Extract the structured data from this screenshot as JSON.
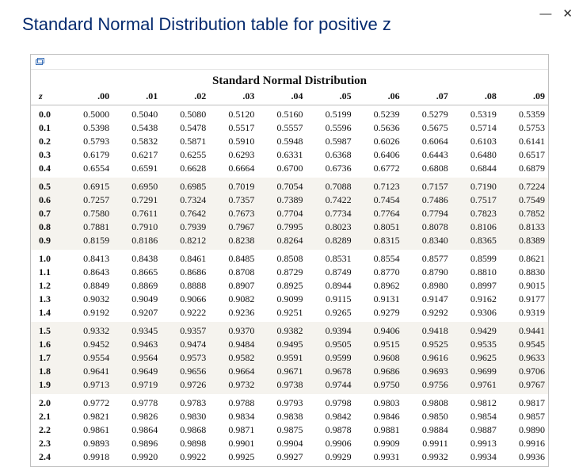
{
  "window": {
    "minimize_glyph": "—",
    "close_glyph": "✕"
  },
  "page": {
    "title": "Standard Normal Distribution table for positive z"
  },
  "table": {
    "type": "table",
    "title": "Standard Normal Distribution",
    "z_header": "z",
    "column_headers": [
      ".00",
      ".01",
      ".02",
      ".03",
      ".04",
      ".05",
      ".06",
      ".07",
      ".08",
      ".09"
    ],
    "header_fontweight": "bold",
    "font_family": "Georgia, 'Times New Roman', serif",
    "body_fontsize": 12,
    "title_fontsize": 15,
    "border_color": "#bfbfbf",
    "band_colors": [
      "#ffffff",
      "#f5f3ee"
    ],
    "blocks": [
      {
        "band": 0,
        "rows": [
          {
            "z": "0.0",
            "v": [
              "0.5000",
              "0.5040",
              "0.5080",
              "0.5120",
              "0.5160",
              "0.5199",
              "0.5239",
              "0.5279",
              "0.5319",
              "0.5359"
            ]
          },
          {
            "z": "0.1",
            "v": [
              "0.5398",
              "0.5438",
              "0.5478",
              "0.5517",
              "0.5557",
              "0.5596",
              "0.5636",
              "0.5675",
              "0.5714",
              "0.5753"
            ]
          },
          {
            "z": "0.2",
            "v": [
              "0.5793",
              "0.5832",
              "0.5871",
              "0.5910",
              "0.5948",
              "0.5987",
              "0.6026",
              "0.6064",
              "0.6103",
              "0.6141"
            ]
          },
          {
            "z": "0.3",
            "v": [
              "0.6179",
              "0.6217",
              "0.6255",
              "0.6293",
              "0.6331",
              "0.6368",
              "0.6406",
              "0.6443",
              "0.6480",
              "0.6517"
            ]
          },
          {
            "z": "0.4",
            "v": [
              "0.6554",
              "0.6591",
              "0.6628",
              "0.6664",
              "0.6700",
              "0.6736",
              "0.6772",
              "0.6808",
              "0.6844",
              "0.6879"
            ]
          }
        ]
      },
      {
        "band": 1,
        "rows": [
          {
            "z": "0.5",
            "v": [
              "0.6915",
              "0.6950",
              "0.6985",
              "0.7019",
              "0.7054",
              "0.7088",
              "0.7123",
              "0.7157",
              "0.7190",
              "0.7224"
            ]
          },
          {
            "z": "0.6",
            "v": [
              "0.7257",
              "0.7291",
              "0.7324",
              "0.7357",
              "0.7389",
              "0.7422",
              "0.7454",
              "0.7486",
              "0.7517",
              "0.7549"
            ]
          },
          {
            "z": "0.7",
            "v": [
              "0.7580",
              "0.7611",
              "0.7642",
              "0.7673",
              "0.7704",
              "0.7734",
              "0.7764",
              "0.7794",
              "0.7823",
              "0.7852"
            ]
          },
          {
            "z": "0.8",
            "v": [
              "0.7881",
              "0.7910",
              "0.7939",
              "0.7967",
              "0.7995",
              "0.8023",
              "0.8051",
              "0.8078",
              "0.8106",
              "0.8133"
            ]
          },
          {
            "z": "0.9",
            "v": [
              "0.8159",
              "0.8186",
              "0.8212",
              "0.8238",
              "0.8264",
              "0.8289",
              "0.8315",
              "0.8340",
              "0.8365",
              "0.8389"
            ]
          }
        ]
      },
      {
        "band": 0,
        "rows": [
          {
            "z": "1.0",
            "v": [
              "0.8413",
              "0.8438",
              "0.8461",
              "0.8485",
              "0.8508",
              "0.8531",
              "0.8554",
              "0.8577",
              "0.8599",
              "0.8621"
            ]
          },
          {
            "z": "1.1",
            "v": [
              "0.8643",
              "0.8665",
              "0.8686",
              "0.8708",
              "0.8729",
              "0.8749",
              "0.8770",
              "0.8790",
              "0.8810",
              "0.8830"
            ]
          },
          {
            "z": "1.2",
            "v": [
              "0.8849",
              "0.8869",
              "0.8888",
              "0.8907",
              "0.8925",
              "0.8944",
              "0.8962",
              "0.8980",
              "0.8997",
              "0.9015"
            ]
          },
          {
            "z": "1.3",
            "v": [
              "0.9032",
              "0.9049",
              "0.9066",
              "0.9082",
              "0.9099",
              "0.9115",
              "0.9131",
              "0.9147",
              "0.9162",
              "0.9177"
            ]
          },
          {
            "z": "1.4",
            "v": [
              "0.9192",
              "0.9207",
              "0.9222",
              "0.9236",
              "0.9251",
              "0.9265",
              "0.9279",
              "0.9292",
              "0.9306",
              "0.9319"
            ]
          }
        ]
      },
      {
        "band": 1,
        "rows": [
          {
            "z": "1.5",
            "v": [
              "0.9332",
              "0.9345",
              "0.9357",
              "0.9370",
              "0.9382",
              "0.9394",
              "0.9406",
              "0.9418",
              "0.9429",
              "0.9441"
            ]
          },
          {
            "z": "1.6",
            "v": [
              "0.9452",
              "0.9463",
              "0.9474",
              "0.9484",
              "0.9495",
              "0.9505",
              "0.9515",
              "0.9525",
              "0.9535",
              "0.9545"
            ]
          },
          {
            "z": "1.7",
            "v": [
              "0.9554",
              "0.9564",
              "0.9573",
              "0.9582",
              "0.9591",
              "0.9599",
              "0.9608",
              "0.9616",
              "0.9625",
              "0.9633"
            ]
          },
          {
            "z": "1.8",
            "v": [
              "0.9641",
              "0.9649",
              "0.9656",
              "0.9664",
              "0.9671",
              "0.9678",
              "0.9686",
              "0.9693",
              "0.9699",
              "0.9706"
            ]
          },
          {
            "z": "1.9",
            "v": [
              "0.9713",
              "0.9719",
              "0.9726",
              "0.9732",
              "0.9738",
              "0.9744",
              "0.9750",
              "0.9756",
              "0.9761",
              "0.9767"
            ]
          }
        ]
      },
      {
        "band": 0,
        "rows": [
          {
            "z": "2.0",
            "v": [
              "0.9772",
              "0.9778",
              "0.9783",
              "0.9788",
              "0.9793",
              "0.9798",
              "0.9803",
              "0.9808",
              "0.9812",
              "0.9817"
            ]
          },
          {
            "z": "2.1",
            "v": [
              "0.9821",
              "0.9826",
              "0.9830",
              "0.9834",
              "0.9838",
              "0.9842",
              "0.9846",
              "0.9850",
              "0.9854",
              "0.9857"
            ]
          },
          {
            "z": "2.2",
            "v": [
              "0.9861",
              "0.9864",
              "0.9868",
              "0.9871",
              "0.9875",
              "0.9878",
              "0.9881",
              "0.9884",
              "0.9887",
              "0.9890"
            ]
          },
          {
            "z": "2.3",
            "v": [
              "0.9893",
              "0.9896",
              "0.9898",
              "0.9901",
              "0.9904",
              "0.9906",
              "0.9909",
              "0.9911",
              "0.9913",
              "0.9916"
            ]
          },
          {
            "z": "2.4",
            "v": [
              "0.9918",
              "0.9920",
              "0.9922",
              "0.9925",
              "0.9927",
              "0.9929",
              "0.9931",
              "0.9932",
              "0.9934",
              "0.9936"
            ]
          }
        ]
      }
    ]
  }
}
